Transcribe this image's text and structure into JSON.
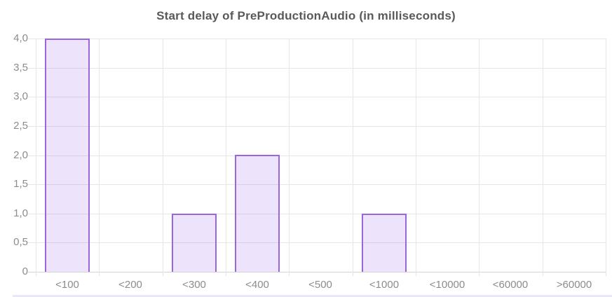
{
  "chart_data": {
    "type": "bar",
    "title": "Start delay of PreProductionAudio (in milliseconds)",
    "categories": [
      "<100",
      "<200",
      "<300",
      "<400",
      "<500",
      "<1000",
      "<10000",
      "<60000",
      ">60000"
    ],
    "values": [
      4,
      0,
      1,
      2,
      0,
      1,
      0,
      0,
      0
    ],
    "xlabel": "",
    "ylabel": "",
    "ylim": [
      0,
      4
    ],
    "ytick_step": 0.5,
    "ytick_labels": [
      "0",
      "0,5",
      "1,0",
      "1,5",
      "2,0",
      "2,5",
      "3,0",
      "3,5",
      "4,0"
    ],
    "decimal_separator": ",",
    "grid": true,
    "legend_position": "none",
    "colors": {
      "bar_fill": "rgba(153,102,230,0.18)",
      "bar_border": "#9966e0",
      "gridline": "#e6e6e6",
      "baseline": "#d4d4d4",
      "tick_label_color": "#8c8c8c",
      "title_color": "#595959",
      "background": "#ffffff",
      "bottom_strip": "#eae8f6"
    }
  }
}
